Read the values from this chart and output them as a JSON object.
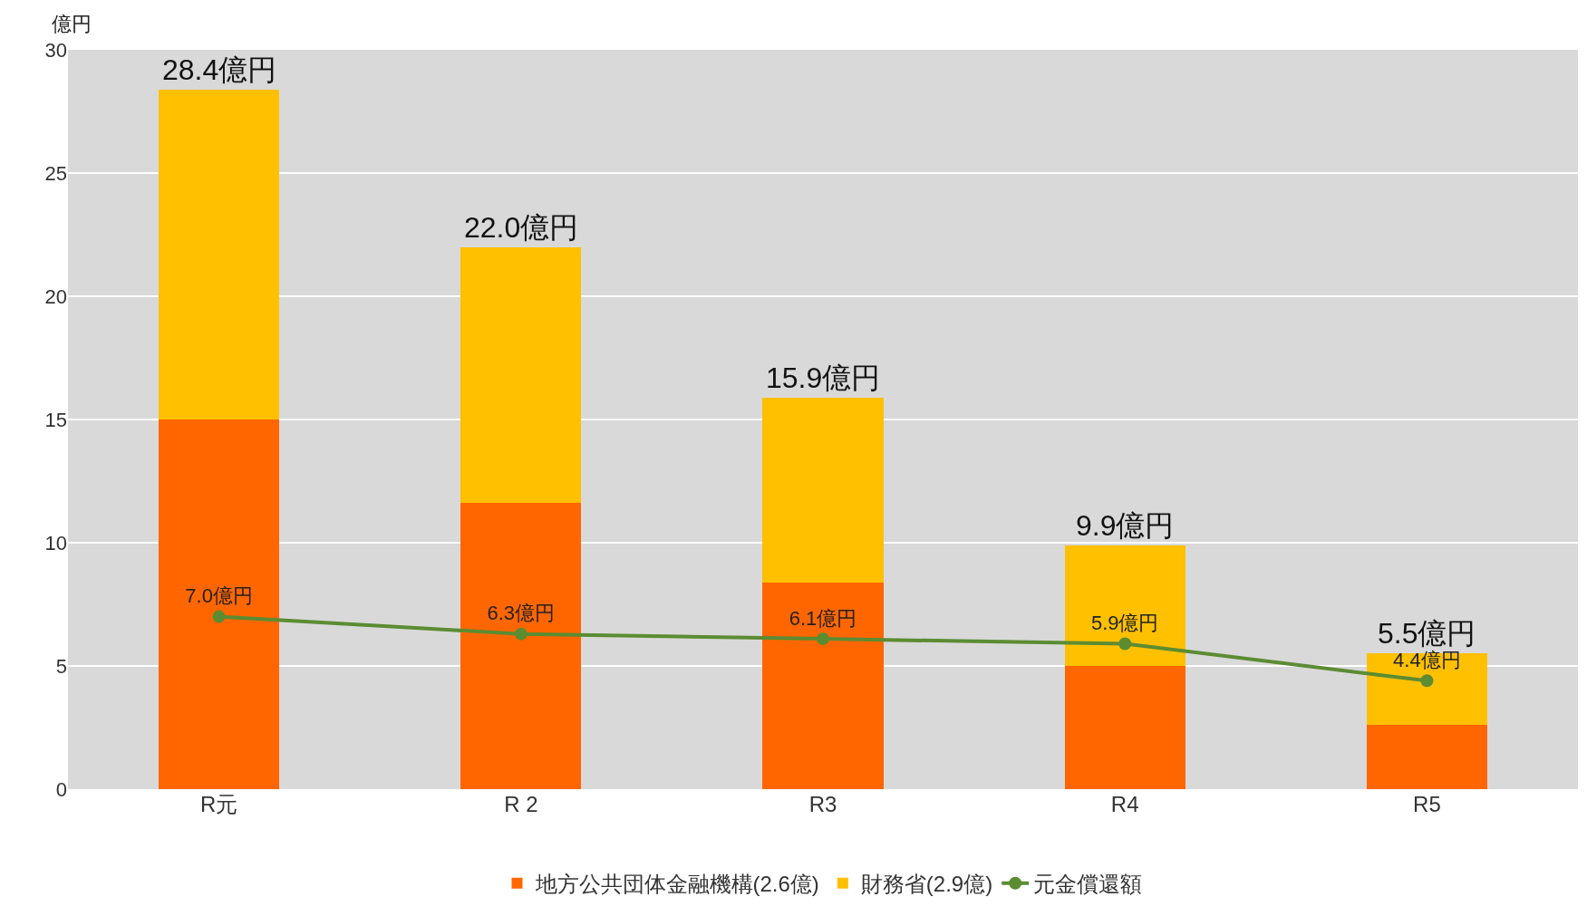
{
  "chart_data": {
    "type": "bar",
    "ylabel": "億円",
    "categories": [
      "R元",
      "R 2",
      "R3",
      "R4",
      "R5"
    ],
    "stacked": true,
    "series": [
      {
        "name": "地方公共団体金融機構(2.6億)",
        "color": "#ff6600",
        "values": [
          15.0,
          11.6,
          8.4,
          5.0,
          2.6
        ]
      },
      {
        "name": "財務省(2.9億)",
        "color": "#ffc000",
        "values": [
          13.4,
          10.4,
          7.5,
          4.9,
          2.9
        ]
      },
      {
        "name": "元金償還額",
        "type": "line",
        "color": "#5b8c32",
        "values": [
          7.0,
          6.3,
          6.1,
          5.9,
          4.4
        ],
        "value_labels": [
          "7.0億円",
          "6.3億円",
          "6.1億円",
          "5.9億円",
          "4.4億円"
        ]
      }
    ],
    "totals": [
      "28.4億円",
      "22.0億円",
      "15.9億円",
      "9.9億円",
      "5.5億円"
    ],
    "ylim": [
      0,
      30
    ],
    "yticks": [
      0,
      5,
      10,
      15,
      20,
      25,
      30
    ],
    "grid": "y",
    "legend": "bottom",
    "marker": "circle"
  }
}
